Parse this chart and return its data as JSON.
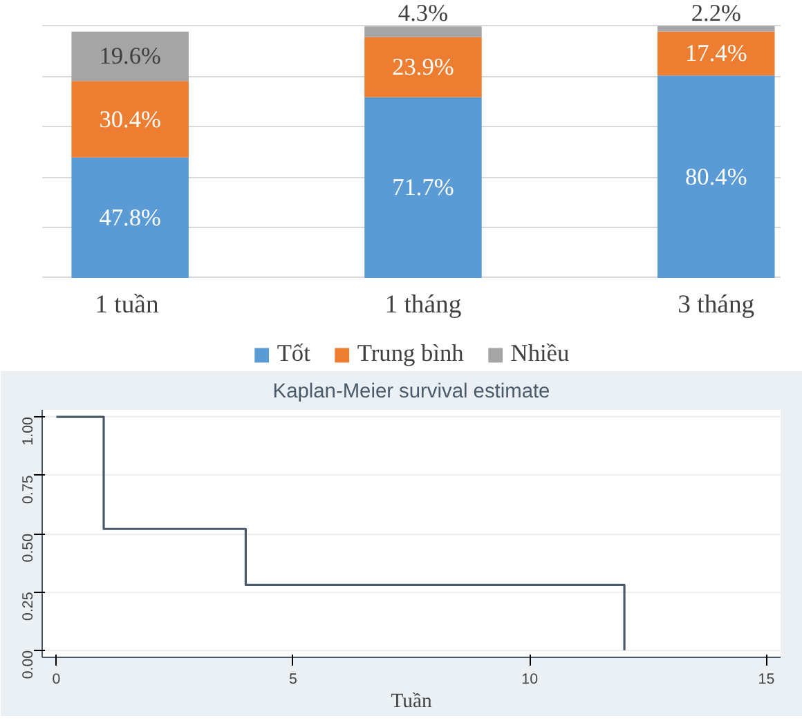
{
  "chart_data": [
    {
      "type": "bar",
      "stacked": true,
      "categories": [
        "1  tuần",
        "1 tháng",
        "3 tháng"
      ],
      "series": [
        {
          "name": "Tốt",
          "color": "#5b9bd5",
          "values": [
            47.8,
            71.7,
            80.4
          ],
          "value_labels": [
            "47.8%",
            "71.7%",
            "80.4%"
          ]
        },
        {
          "name": "Trung bình",
          "color": "#ed7d31",
          "values": [
            30.4,
            23.9,
            17.4
          ],
          "value_labels": [
            "30.4%",
            "23.9%",
            "17.4%"
          ]
        },
        {
          "name": "Nhiều",
          "color": "#a5a5a5",
          "values": [
            19.6,
            4.3,
            2.2
          ],
          "value_labels": [
            "19.6%",
            "4.3%",
            "2.2%"
          ]
        }
      ],
      "grid": "y",
      "legend": "bottom"
    },
    {
      "type": "step",
      "title": "Kaplan-Meier survival estimate",
      "xlabel": "Tuần",
      "x": [
        0,
        1,
        4,
        12
      ],
      "values": [
        1,
        0.52,
        0.28,
        0
      ],
      "color": "#4a5a6a",
      "xlim": [
        -0.3,
        15.3
      ],
      "ylim": [
        -0.03,
        1.03
      ],
      "xticks": [
        0,
        5,
        10,
        15
      ],
      "yticks": [
        {
          "value": 0,
          "label": "0.00"
        },
        {
          "value": 0.25,
          "label": "0.25"
        },
        {
          "value": 0.5,
          "label": "0.50"
        },
        {
          "value": 0.75,
          "label": "0.75"
        },
        {
          "value": 1,
          "label": "1.00"
        }
      ],
      "grid": "y"
    }
  ]
}
